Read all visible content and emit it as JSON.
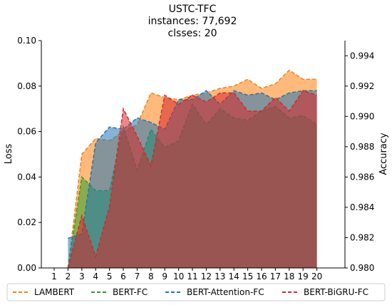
{
  "chart_data": {
    "type": "area",
    "title_lines": [
      "USTC-TFC",
      "instances: 77,692",
      "clsses: 20"
    ],
    "ylabel_left": "Loss",
    "ylabel_right": "Accuracy",
    "x_ticks": [
      1,
      2,
      3,
      4,
      5,
      6,
      7,
      8,
      9,
      10,
      11,
      12,
      13,
      14,
      15,
      16,
      17,
      18,
      19,
      20
    ],
    "y_left_ticks": [
      "0.00",
      "0.02",
      "0.04",
      "0.06",
      "0.08",
      "0.10"
    ],
    "y_right_ticks": [
      "0.980",
      "0.982",
      "0.984",
      "0.986",
      "0.988",
      "0.990",
      "0.992",
      "0.994"
    ],
    "y_left_lim": [
      0,
      0.1
    ],
    "y_right_lim": [
      0.98,
      0.995
    ],
    "legend_position": "bottom",
    "x": [
      2,
      3,
      4,
      5,
      6,
      7,
      8,
      9,
      10,
      11,
      12,
      13,
      14,
      15,
      16,
      17,
      18,
      19,
      20
    ],
    "series": [
      {
        "name": "LAMBERT",
        "color": "#ff7f0e",
        "values": [
          0.0,
          0.05,
          0.057,
          0.056,
          0.06,
          0.063,
          0.077,
          0.075,
          0.074,
          0.076,
          0.077,
          0.079,
          0.08,
          0.083,
          0.079,
          0.081,
          0.087,
          0.083,
          0.083
        ]
      },
      {
        "name": "BERT-FC",
        "color": "#2ca02c",
        "values": [
          0.0,
          0.04,
          0.034,
          0.034,
          0.062,
          0.043,
          0.061,
          0.053,
          0.056,
          0.072,
          0.063,
          0.07,
          0.066,
          0.065,
          0.069,
          0.071,
          0.066,
          0.067,
          0.063
        ]
      },
      {
        "name": "BERT-Attention-FC",
        "color": "#1f77b4",
        "values": [
          0.013,
          0.015,
          0.055,
          0.062,
          0.061,
          0.066,
          0.064,
          0.061,
          0.074,
          0.074,
          0.078,
          0.072,
          0.078,
          0.076,
          0.077,
          0.074,
          0.077,
          0.078,
          0.078
        ]
      },
      {
        "name": "BERT-BiGRU-FC",
        "color": "#d62728",
        "values": [
          0.0,
          0.023,
          0.005,
          0.027,
          0.07,
          0.058,
          0.045,
          0.076,
          0.072,
          0.076,
          0.073,
          0.077,
          0.077,
          0.069,
          0.069,
          0.075,
          0.069,
          0.078,
          0.076
        ]
      }
    ]
  }
}
